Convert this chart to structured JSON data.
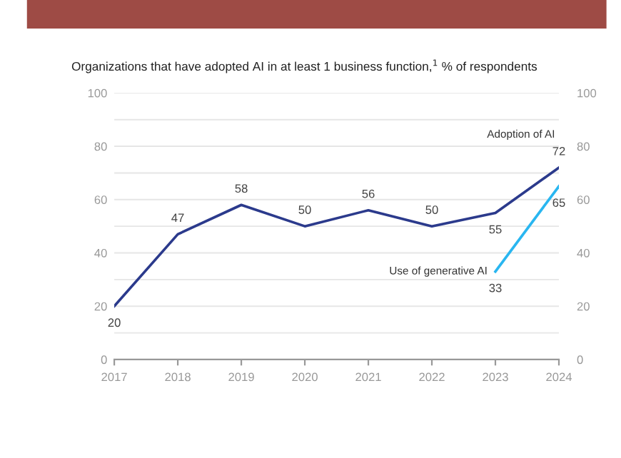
{
  "chart_data": {
    "type": "line",
    "title": "Organizations that have adopted AI in at least 1 business function,$^{1}$ % of respondents",
    "categories": [
      "2017",
      "2018",
      "2019",
      "2020",
      "2021",
      "2022",
      "2023",
      "2024"
    ],
    "series": [
      {
        "name": "Adoption of AI",
        "color": "#2b3a8c",
        "values": [
          20,
          47,
          58,
          50,
          56,
          50,
          55,
          72
        ]
      },
      {
        "name": "Use of generative AI",
        "color": "#29b6f0",
        "values": [
          null,
          null,
          null,
          null,
          null,
          null,
          33,
          65
        ]
      }
    ],
    "ylim": [
      0,
      100
    ],
    "yticks": [
      0,
      {
        "value": 10,
        "label": null
      },
      20,
      {
        "value": 30,
        "label": null
      },
      40,
      {
        "value": 50,
        "label": null
      },
      60,
      {
        "value": 70,
        "label": null
      },
      80,
      {
        "value": 90,
        "label": null
      },
      100
    ],
    "y2lim": [
      0,
      100
    ],
    "y2ticks": [
      0,
      20,
      40,
      60,
      80,
      100
    ],
    "grid": "y",
    "legend": false,
    "marker": "none",
    "line_style": "solid",
    "data_labels": true
  }
}
